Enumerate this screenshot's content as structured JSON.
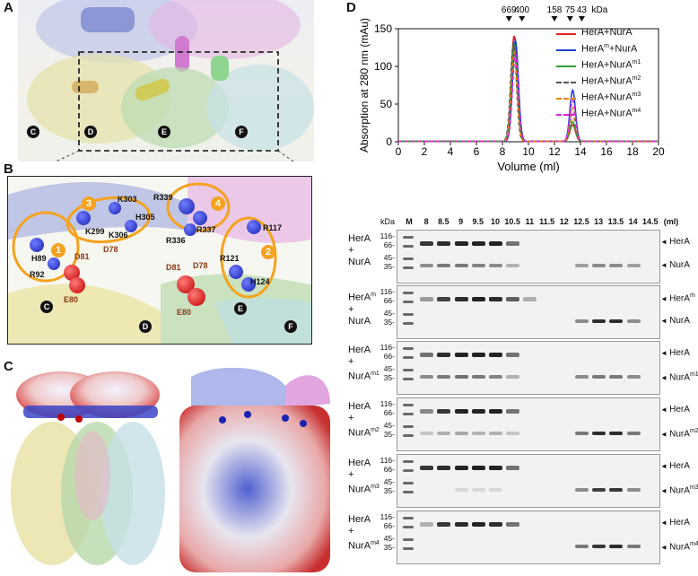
{
  "panels": {
    "a": "A",
    "b": "B",
    "c": "C",
    "d": "D"
  },
  "panel_a": {
    "chains": [
      "C",
      "D",
      "E",
      "F"
    ]
  },
  "panel_b": {
    "chains": [
      "C",
      "D",
      "E",
      "F"
    ],
    "sites": [
      "1",
      "2",
      "3",
      "4"
    ],
    "residues_blue": [
      "H89",
      "R92",
      "K299",
      "K303",
      "H305",
      "K306",
      "R339",
      "R337",
      "R336",
      "R117",
      "R121",
      "H124"
    ],
    "residues_red": [
      "D81",
      "D78",
      "E80",
      "D81",
      "D78",
      "E80"
    ]
  },
  "chart_data": {
    "type": "line",
    "xlabel": "Volume (ml)",
    "ylabel": "Absorption at 280 nm (mAu)",
    "xlim": [
      0,
      20
    ],
    "ylim": [
      0,
      150
    ],
    "xticks": [
      0,
      2,
      4,
      6,
      8,
      10,
      12,
      14,
      16,
      18,
      20
    ],
    "yticks": [
      0,
      50,
      100,
      150
    ],
    "markers": {
      "labels": [
        "669",
        "400",
        "158",
        "75",
        "43"
      ],
      "positions": [
        8.5,
        9.5,
        12,
        13.2,
        14.1
      ],
      "unit": "kDa"
    },
    "series": [
      {
        "name": "HerA+NurA",
        "color": "#e02020",
        "dash": false,
        "peak1": {
          "x": 8.9,
          "y": 140
        },
        "peak2": {
          "x": 13.4,
          "y": 22
        }
      },
      {
        "name": "HerA^m+NurA",
        "color": "#2040e0",
        "dash": false,
        "peak1": {
          "x": 9.0,
          "y": 134
        },
        "peak2": {
          "x": 13.4,
          "y": 68
        }
      },
      {
        "name": "HerA+NurA^m1",
        "color": "#30a030",
        "dash": false,
        "peak1": {
          "x": 8.9,
          "y": 128
        },
        "peak2": {
          "x": 13.4,
          "y": 26
        }
      },
      {
        "name": "HerA+NurA^m2",
        "color": "#555555",
        "dash": true,
        "peak1": {
          "x": 8.85,
          "y": 130
        },
        "peak2": {
          "x": 13.4,
          "y": 36
        }
      },
      {
        "name": "HerA+NurA^m3",
        "color": "#f08000",
        "dash": true,
        "peak1": {
          "x": 8.9,
          "y": 118
        },
        "peak2": {
          "x": 13.4,
          "y": 44
        }
      },
      {
        "name": "HerA+NurA^m4",
        "color": "#e020e0",
        "dash": true,
        "peak1": {
          "x": 9.0,
          "y": 116
        },
        "peak2": {
          "x": 13.4,
          "y": 54
        }
      }
    ]
  },
  "legend": [
    {
      "base": "HerA+NurA",
      "sup": ""
    },
    {
      "base": "HerA",
      "sup": "m",
      "tail": "+NurA"
    },
    {
      "base": "HerA+NurA",
      "sup": "m1"
    },
    {
      "base": "HerA+NurA",
      "sup": "m2"
    },
    {
      "base": "HerA+NurA",
      "sup": "m3"
    },
    {
      "base": "HerA+NurA",
      "sup": "m4"
    }
  ],
  "gels": {
    "kda_label": "kDa",
    "lanes": [
      "M",
      "8",
      "8.5",
      "9",
      "9.5",
      "10",
      "10.5",
      "11",
      "11.5",
      "12",
      "12.5",
      "13",
      "13.5",
      "14",
      "14.5",
      "(ml)"
    ],
    "mw_markers": [
      "116-",
      "66-",
      "45-",
      "35-"
    ],
    "rows": [
      {
        "left": [
          "HerA",
          "+",
          "NurA"
        ],
        "left_sup": [
          "",
          "",
          ""
        ],
        "right": [
          "HerA",
          "NurA"
        ],
        "right_sup": [
          "",
          ""
        ]
      },
      {
        "left": [
          "HerA",
          "+",
          "NurA"
        ],
        "left_sup": [
          "m",
          "",
          ""
        ],
        "right": [
          "HerA",
          "NurA"
        ],
        "right_sup": [
          "m",
          ""
        ]
      },
      {
        "left": [
          "HerA",
          "+",
          "NurA"
        ],
        "left_sup": [
          "",
          "",
          "m1"
        ],
        "right": [
          "HerA",
          "NurA"
        ],
        "right_sup": [
          "",
          "m1"
        ]
      },
      {
        "left": [
          "HerA",
          "+",
          "NurA"
        ],
        "left_sup": [
          "",
          "",
          "m2"
        ],
        "right": [
          "HerA",
          "NurA"
        ],
        "right_sup": [
          "",
          "m2"
        ]
      },
      {
        "left": [
          "HerA",
          "+",
          "NurA"
        ],
        "left_sup": [
          "",
          "",
          "m3"
        ],
        "right": [
          "HerA",
          "NurA"
        ],
        "right_sup": [
          "",
          "m3"
        ]
      },
      {
        "left": [
          "HerA",
          "+",
          "NurA"
        ],
        "left_sup": [
          "",
          "",
          "m4"
        ],
        "right": [
          "HerA",
          "NurA"
        ],
        "right_sup": [
          "",
          "m4"
        ]
      }
    ],
    "top_band_intensity": [
      [
        0,
        0.9,
        0.95,
        1,
        1,
        1,
        0.6,
        0,
        0,
        0,
        0,
        0,
        0,
        0
      ],
      [
        0,
        0.4,
        0.85,
        0.95,
        1,
        0.95,
        0.7,
        0.3,
        0,
        0,
        0,
        0,
        0,
        0
      ],
      [
        0,
        0.6,
        0.95,
        1,
        1,
        1,
        0.6,
        0,
        0,
        0,
        0,
        0,
        0,
        0
      ],
      [
        0,
        0.5,
        0.9,
        1,
        1,
        1,
        0.6,
        0,
        0,
        0,
        0,
        0,
        0,
        0
      ],
      [
        0,
        0.9,
        0.95,
        1,
        1,
        1,
        0.6,
        0,
        0,
        0,
        0,
        0,
        0,
        0
      ],
      [
        0,
        0.3,
        0.9,
        0.95,
        1,
        0.95,
        0.6,
        0,
        0,
        0,
        0,
        0,
        0,
        0
      ]
    ],
    "bottom_band_intensity": [
      [
        0,
        0.5,
        0.6,
        0.6,
        0.55,
        0.5,
        0.3,
        0,
        0,
        0,
        0.4,
        0.5,
        0.5,
        0.4
      ],
      [
        0,
        0,
        0,
        0,
        0,
        0,
        0,
        0,
        0,
        0,
        0.5,
        1,
        1,
        0.5
      ],
      [
        0,
        0.5,
        0.6,
        0.65,
        0.6,
        0.55,
        0.3,
        0,
        0,
        0,
        0.5,
        0.6,
        0.6,
        0.5
      ],
      [
        0,
        0.2,
        0.3,
        0.35,
        0.3,
        0.3,
        0.2,
        0,
        0,
        0,
        0.6,
        1,
        1,
        0.6
      ],
      [
        0,
        0,
        0,
        0.1,
        0.1,
        0.1,
        0,
        0,
        0,
        0,
        0.5,
        0.9,
        0.95,
        0.5
      ],
      [
        0,
        0,
        0,
        0,
        0,
        0,
        0,
        0,
        0,
        0,
        0.6,
        0.95,
        1,
        0.6
      ]
    ]
  }
}
